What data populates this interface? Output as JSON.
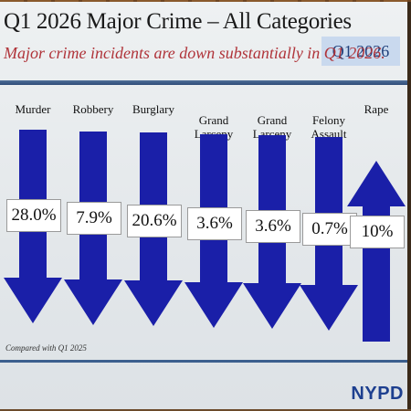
{
  "slide": {
    "title": "Q1 2026 Major Crime – All Categories",
    "quarter_badge": "Q1 2026",
    "subtitle": "Major crime incidents are down substantially in Q1 2026.",
    "footnote": "Compared with Q1 2025",
    "logo": "NYPD"
  },
  "colors": {
    "arrow": "#1a1fa8",
    "subtitle": "#b0343a",
    "rule": "#2e4d78"
  },
  "categories": [
    {
      "label": "Murder",
      "change": "28.0%",
      "direction": "down"
    },
    {
      "label": "Robbery",
      "change": "7.9%",
      "direction": "down"
    },
    {
      "label": "Burglary",
      "change": "20.6%",
      "direction": "down"
    },
    {
      "label": "Grand\nLarceny",
      "change": "3.6%",
      "direction": "down"
    },
    {
      "label": "Grand\nLarceny Auto",
      "change": "3.6%",
      "direction": "down"
    },
    {
      "label": "Felony\nAssault",
      "change": "0.7%",
      "direction": "down"
    },
    {
      "label": "Rape",
      "change": "10%",
      "direction": "up"
    }
  ]
}
